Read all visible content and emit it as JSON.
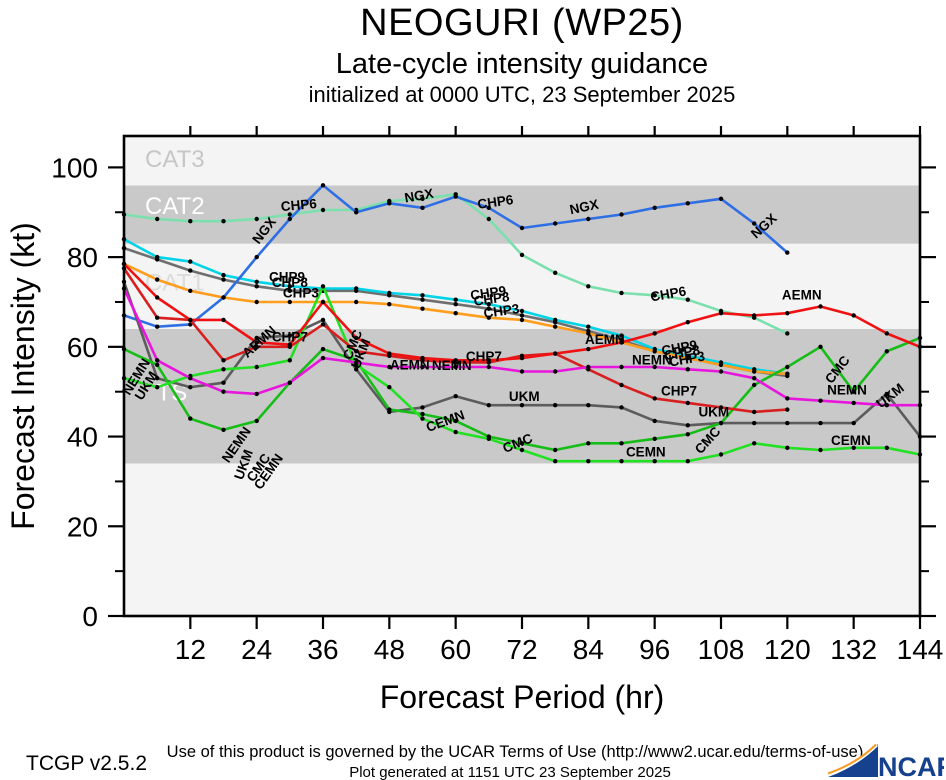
{
  "header": {
    "title": "NEOGURI (WP25)",
    "subtitle": "Late-cycle intensity guidance",
    "init_line": "initialized at 0000 UTC, 23 September 2025"
  },
  "footer": {
    "version": "TCGP v2.5.2",
    "terms": "Use of this product is governed by the UCAR Terms of Use (http://www2.ucar.edu/terms-of-use)",
    "generated": "Plot generated at 1151 UTC   23 September 2025",
    "logo_text": "NCAR"
  },
  "colors": {
    "band_dark": "#c9c9c9",
    "band_light": "#f4f4f4",
    "frame": "#000000",
    "dot": "#000000"
  },
  "chart_data": {
    "type": "line",
    "title": "NEOGURI (WP25) late-cycle intensity guidance",
    "xlabel": "Forecast Period (hr)",
    "ylabel": "Forecast Intensity (kt)",
    "xlim": [
      0,
      144
    ],
    "ylim": [
      0,
      107
    ],
    "xticks": [
      12,
      24,
      36,
      48,
      60,
      72,
      84,
      96,
      108,
      120,
      132,
      144
    ],
    "yticks_major": [
      0,
      20,
      40,
      60,
      80,
      100
    ],
    "yticks_minor": [
      10,
      30,
      50,
      70,
      90
    ],
    "point_interval_hr": 6,
    "x_hours": [
      0,
      6,
      12,
      18,
      24,
      30,
      36,
      42,
      48,
      54,
      60,
      66,
      72,
      78,
      84,
      90,
      96,
      102,
      108,
      114,
      120,
      126,
      132,
      138,
      144
    ],
    "bands": [
      {
        "label": "",
        "from": 0,
        "to": 34,
        "shade": "light"
      },
      {
        "label": "TS",
        "from": 34,
        "to": 64,
        "shade": "dark",
        "label_hr": 5.9,
        "label_kt": 49.5,
        "label_color": "#ffffff"
      },
      {
        "label": "CAT1",
        "from": 64,
        "to": 83,
        "shade": "light",
        "label_hr": 3.8,
        "label_kt": 74.0,
        "label_color": "#dcdcdc"
      },
      {
        "label": "CAT2",
        "from": 83,
        "to": 96,
        "shade": "dark",
        "label_hr": 3.8,
        "label_kt": 91.0,
        "label_color": "#ffffff"
      },
      {
        "label": "CAT3",
        "from": 96,
        "to": 107,
        "shade": "light",
        "label_hr": 3.8,
        "label_kt": 101.5,
        "label_color": "#c6c6c6"
      }
    ],
    "series": [
      {
        "name": "CHP8",
        "color": "#6f6f6f",
        "values": [
          82,
          79.5,
          77,
          75,
          73.5,
          72.5,
          72.5,
          72.5,
          71.5,
          70.5,
          69.5,
          68.5,
          67,
          65.5,
          63.5,
          61.5,
          59,
          57.5,
          56,
          54.5,
          53.5,
          null,
          null,
          null,
          null
        ]
      },
      {
        "name": "CHP9",
        "color": "#00d4e6",
        "values": [
          84,
          80,
          79,
          76,
          74.5,
          73.5,
          73,
          73,
          72,
          71.5,
          70.5,
          69.5,
          68,
          66,
          64.5,
          62.5,
          59.5,
          58,
          56.5,
          55,
          54,
          null,
          null,
          null,
          null
        ]
      },
      {
        "name": "CHP3",
        "color": "#ff9d1c",
        "values": [
          78.5,
          75,
          72.5,
          71,
          70,
          70,
          70,
          70,
          69.5,
          68.5,
          67.5,
          66.5,
          66,
          64.5,
          63,
          61,
          59,
          57.5,
          56,
          54.5,
          54,
          null,
          null,
          null,
          null
        ]
      },
      {
        "name": "CHP6",
        "color": "#7be0ad",
        "values": [
          89.5,
          88.5,
          88,
          88,
          88.5,
          89.5,
          90.5,
          90.5,
          92.5,
          93,
          94,
          88.5,
          80.5,
          76.5,
          73.5,
          72,
          71.5,
          70.5,
          68,
          66.5,
          63,
          null,
          null,
          null,
          null
        ]
      },
      {
        "name": "NGX",
        "color": "#2f6fe4",
        "values": [
          67,
          64.5,
          65,
          71,
          80,
          88.5,
          96,
          90,
          92,
          91,
          93.5,
          91,
          86.5,
          87.5,
          88.5,
          89.5,
          91,
          92,
          93,
          87.5,
          81,
          null,
          null,
          null,
          null
        ]
      },
      {
        "name": "UKM",
        "color": "#5c5c5c",
        "values": [
          74.5,
          53,
          51,
          52,
          62,
          62.5,
          66,
          55,
          45.5,
          46.5,
          49,
          47,
          47,
          47,
          47,
          46.5,
          43.5,
          42.5,
          43,
          43,
          43,
          43,
          43,
          49.5,
          40
        ]
      },
      {
        "name": "CMC",
        "color": "#16bd16",
        "values": [
          59.5,
          56,
          44,
          41.5,
          43.5,
          52,
          59.5,
          57,
          46,
          45,
          43.5,
          40,
          38.5,
          37,
          38.5,
          38.5,
          39.5,
          40.5,
          43,
          51.5,
          55.5,
          60,
          50,
          59,
          62
        ]
      },
      {
        "name": "CEMN",
        "color": "#22e022",
        "values": [
          53,
          51,
          53.5,
          55,
          55.5,
          57,
          73.5,
          56,
          51,
          44,
          41,
          39.5,
          37,
          34.5,
          34.5,
          34.5,
          34.5,
          34.5,
          36,
          38.5,
          37.5,
          37,
          37.5,
          37.5,
          36
        ]
      },
      {
        "name": "CHP7",
        "color": "#d81f1f",
        "values": [
          77.5,
          66.5,
          66,
          57,
          60,
          60,
          65,
          59,
          58,
          57,
          56.5,
          56.5,
          58,
          58.5,
          55,
          51.5,
          48.5,
          47.5,
          46.5,
          45.5,
          46,
          null,
          null,
          null,
          null
        ]
      },
      {
        "name": "AEMN",
        "color": "#f01212",
        "values": [
          78.5,
          71,
          66,
          66,
          61,
          60.5,
          70,
          62,
          58.5,
          57.5,
          57,
          57,
          57.5,
          58.5,
          59.5,
          61,
          63,
          65.5,
          67.5,
          67,
          67.5,
          69,
          67,
          63,
          60
        ]
      },
      {
        "name": "NEMN",
        "color": "#e816dc",
        "values": [
          73,
          57,
          53,
          50,
          49.5,
          52,
          57.5,
          56.5,
          55.5,
          55.5,
          55.5,
          55.5,
          54.5,
          54.5,
          55.5,
          55.5,
          55.5,
          55,
          54.5,
          53,
          48.5,
          48,
          47.5,
          47,
          47
        ]
      }
    ],
    "line_labels": [
      {
        "text": "NGX",
        "hr": 26.0,
        "kt": 85.3,
        "rot": -52
      },
      {
        "text": "NGX",
        "hr": 53.5,
        "kt": 92.7,
        "rot": -10
      },
      {
        "text": "NGX",
        "hr": 83.4,
        "kt": 90.2,
        "rot": -12
      },
      {
        "text": "NGX",
        "hr": 116.3,
        "kt": 86.2,
        "rot": -42
      },
      {
        "text": "CHP6",
        "hr": 31.7,
        "kt": 90.6,
        "rot": -5
      },
      {
        "text": "CHP6",
        "hr": 67.3,
        "kt": 91.3,
        "rot": -8
      },
      {
        "text": "CHP6",
        "hr": 98.6,
        "kt": 70.8,
        "rot": -10
      },
      {
        "text": "CHP9",
        "hr": 29.5,
        "kt": 74.6,
        "rot": 0
      },
      {
        "text": "CHP8",
        "hr": 30.0,
        "kt": 73.3,
        "rot": 0
      },
      {
        "text": "CHP3",
        "hr": 32.0,
        "kt": 71.0,
        "rot": 0
      },
      {
        "text": "CHP9",
        "hr": 66.0,
        "kt": 71.0,
        "rot": -8
      },
      {
        "text": "CHP8",
        "hr": 66.6,
        "kt": 69.7,
        "rot": -8
      },
      {
        "text": "CHP3",
        "hr": 68.4,
        "kt": 67.0,
        "rot": -8
      },
      {
        "text": "CHP9",
        "hr": 100.6,
        "kt": 58.8,
        "rot": -10
      },
      {
        "text": "CHP8",
        "hr": 101.1,
        "kt": 57.7,
        "rot": -10
      },
      {
        "text": "CHP3",
        "hr": 102.0,
        "kt": 56.3,
        "rot": -10
      },
      {
        "text": "AEMN",
        "hr": 25.0,
        "kt": 60.4,
        "rot": -42
      },
      {
        "text": "CHP7",
        "hr": 30.0,
        "kt": 61.2,
        "rot": 0
      },
      {
        "text": "AEMN",
        "hr": 51.7,
        "kt": 55.0,
        "rot": 0
      },
      {
        "text": "NEMN",
        "hr": 59.3,
        "kt": 54.8,
        "rot": 0
      },
      {
        "text": "CHP7",
        "hr": 65.1,
        "kt": 56.8,
        "rot": 0
      },
      {
        "text": "AEMN",
        "hr": 87.0,
        "kt": 60.6,
        "rot": 0
      },
      {
        "text": "NEMN",
        "hr": 95.5,
        "kt": 56.1,
        "rot": 0
      },
      {
        "text": "CHP7",
        "hr": 100.4,
        "kt": 49.2,
        "rot": 0
      },
      {
        "text": "AEMN",
        "hr": 122.6,
        "kt": 70.6,
        "rot": 0
      },
      {
        "text": "NEMN",
        "hr": 130.8,
        "kt": 49.4,
        "rot": 0
      },
      {
        "text": "UKM",
        "hr": 4.7,
        "kt": 50.8,
        "rot": -58
      },
      {
        "text": "NEMN",
        "hr": 2.9,
        "kt": 52.8,
        "rot": -58
      },
      {
        "text": "NEMN",
        "hr": 21.0,
        "kt": 37.6,
        "rot": -55
      },
      {
        "text": "UKM",
        "hr": 22.4,
        "kt": 33.4,
        "rot": -70
      },
      {
        "text": "CMC",
        "hr": 25.0,
        "kt": 32.5,
        "rot": -55
      },
      {
        "text": "CEMN",
        "hr": 26.8,
        "kt": 31.6,
        "rot": -55
      },
      {
        "text": "CMC",
        "hr": 42.1,
        "kt": 60.1,
        "rot": -68
      },
      {
        "text": "UKM",
        "hr": 43.6,
        "kt": 58.1,
        "rot": -68
      },
      {
        "text": "CEMN",
        "hr": 58.4,
        "kt": 42.5,
        "rot": -20
      },
      {
        "text": "CMC",
        "hr": 71.5,
        "kt": 37.6,
        "rot": -22
      },
      {
        "text": "UKM",
        "hr": 72.4,
        "kt": 47.9,
        "rot": 0
      },
      {
        "text": "CEMN",
        "hr": 94.4,
        "kt": 35.6,
        "rot": 0
      },
      {
        "text": "CMC",
        "hr": 106.2,
        "kt": 38.5,
        "rot": -48
      },
      {
        "text": "UKM",
        "hr": 106.7,
        "kt": 44.5,
        "rot": 0
      },
      {
        "text": "CMC",
        "hr": 129.7,
        "kt": 54.3,
        "rot": -52
      },
      {
        "text": "CEMN",
        "hr": 131.5,
        "kt": 38.1,
        "rot": 0
      },
      {
        "text": "UKM",
        "hr": 139.1,
        "kt": 48.3,
        "rot": -38
      }
    ]
  }
}
